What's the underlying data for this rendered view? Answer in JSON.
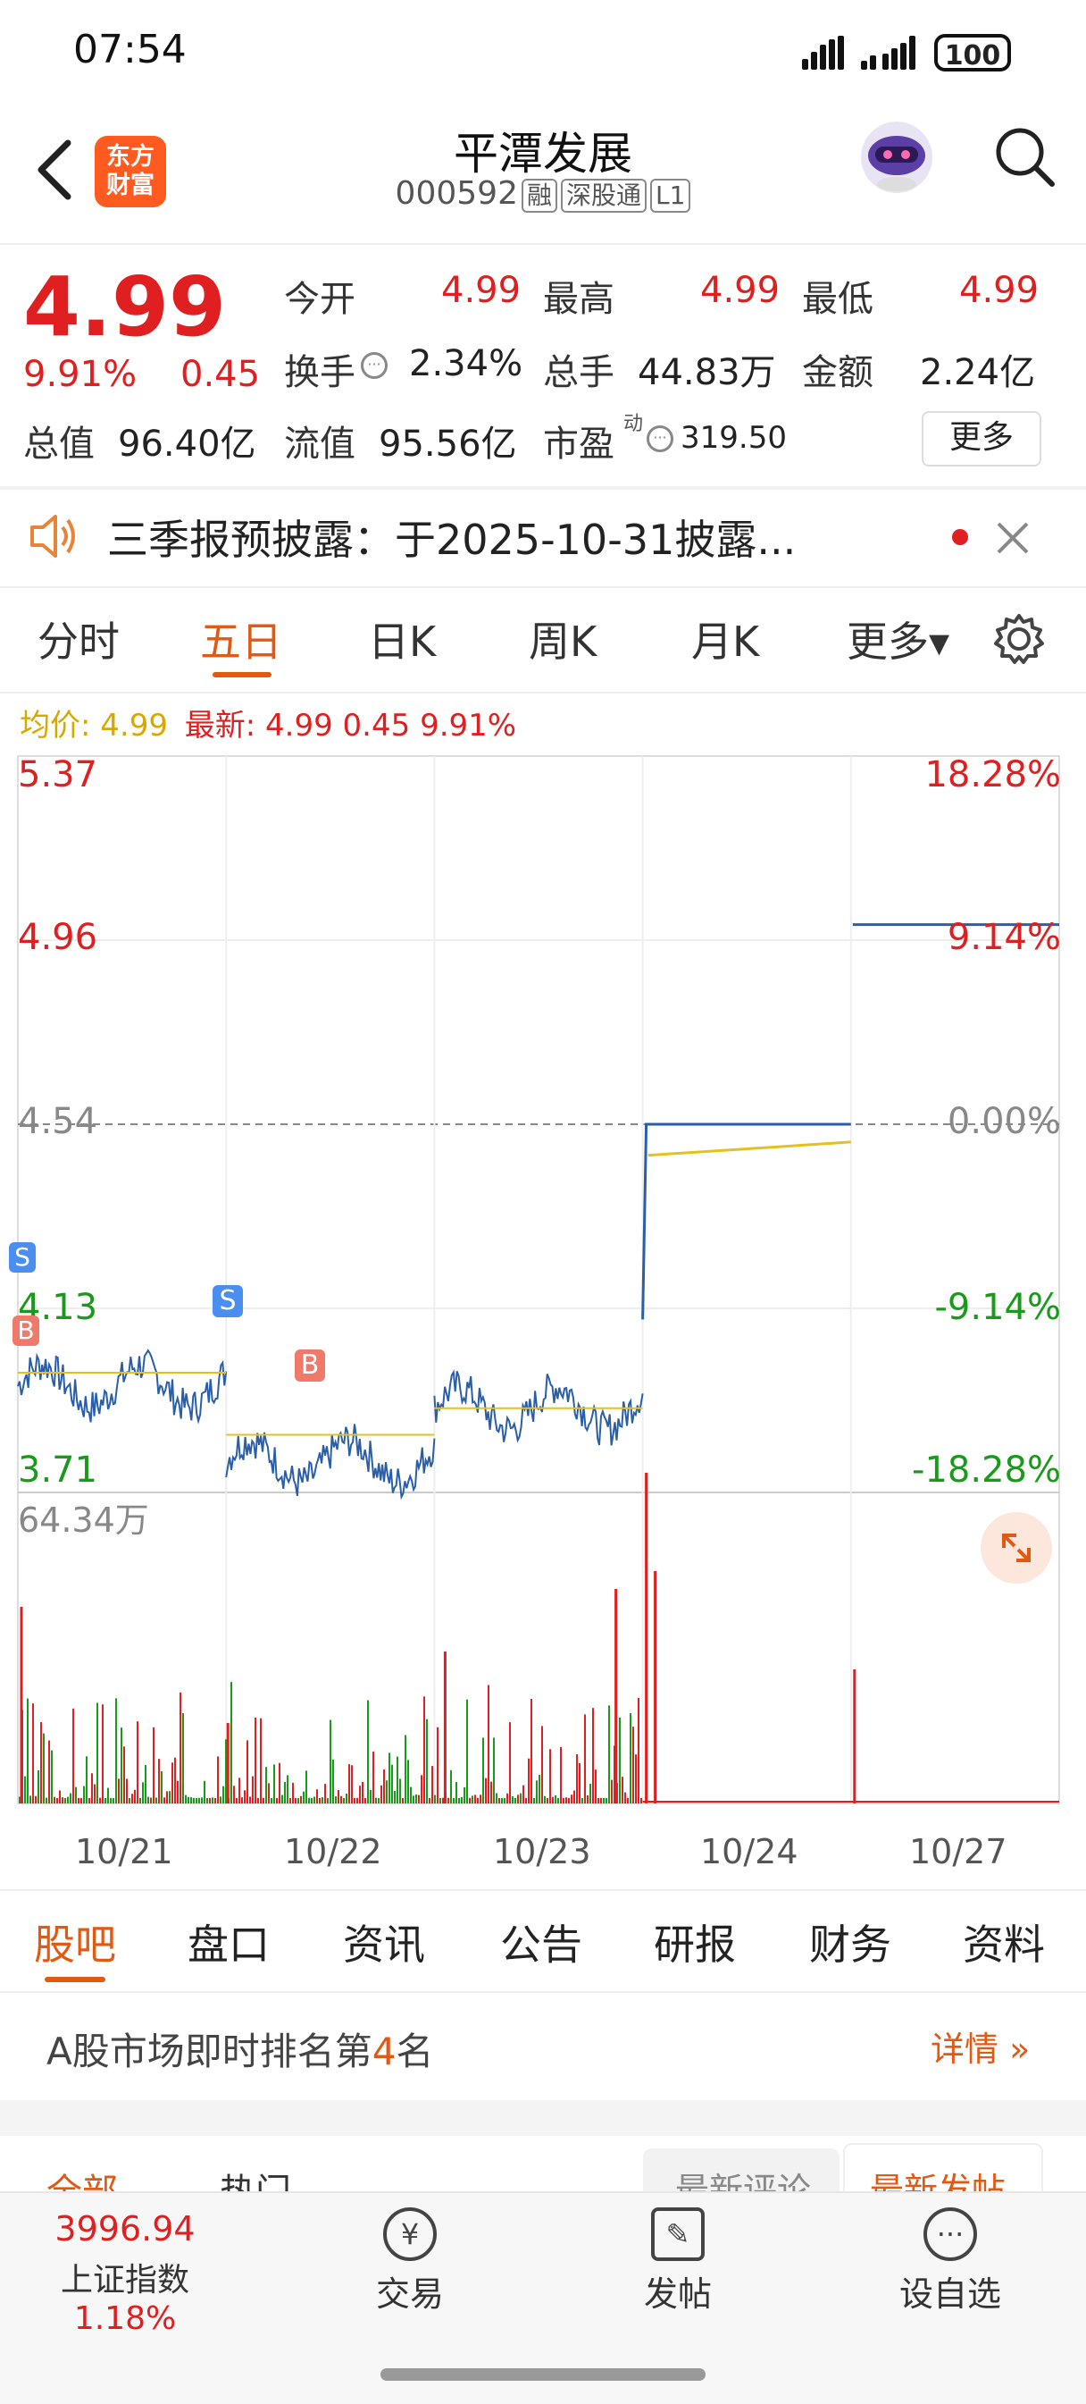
{
  "status_bar": {
    "time": "07:54",
    "battery": "100"
  },
  "header": {
    "title": "平潭发展",
    "code": "000592",
    "tags": [
      "融",
      "深股通",
      "L1"
    ],
    "logo_text": "东方\n财富"
  },
  "quote": {
    "price": "4.99",
    "change_pct": "9.91%",
    "change": "0.45",
    "stats": [
      {
        "label": "今开",
        "value": "4.99"
      },
      {
        "label": "最高",
        "value": "4.99"
      },
      {
        "label": "最低",
        "value": "4.99"
      },
      {
        "label": "换手",
        "value": "2.34%"
      },
      {
        "label": "总手",
        "value": "44.83万"
      },
      {
        "label": "金额",
        "value": "2.24亿"
      },
      {
        "label": "总值",
        "value": "96.40亿"
      },
      {
        "label": "流值",
        "value": "95.56亿"
      },
      {
        "label": "市盈",
        "value": "319.50"
      }
    ],
    "pe_superscript": "动",
    "more_label": "更多"
  },
  "notice": {
    "text": "三季报预披露：于2025-10-31披露..."
  },
  "chart_tabs": [
    "分时",
    "五日",
    "日K",
    "周K",
    "月K",
    "更多▾"
  ],
  "active_chart_tab": "五日",
  "chart": {
    "avg_label": "均价: 4.99",
    "latest_label": "最新: 4.99 0.45 9.91%",
    "left_axis": [
      "5.37",
      "4.96",
      "4.54",
      "4.13",
      "3.71"
    ],
    "right_axis": [
      "18.28%",
      "9.14%",
      "0.00%",
      "-9.14%",
      "-18.28%"
    ],
    "volume_max": "64.34万",
    "x_labels": [
      "10/21",
      "10/22",
      "10/23",
      "10/24",
      "10/27"
    ],
    "markers": [
      "S",
      "B",
      "S",
      "B"
    ]
  },
  "chart_data": {
    "type": "line",
    "title": "",
    "x": [
      "10/21",
      "10/22",
      "10/23",
      "10/24",
      "10/27"
    ],
    "ylim": [
      3.71,
      5.37
    ],
    "series": [
      {
        "values": [
          3.95,
          3.78,
          3.9,
          4.54,
          4.99
        ]
      },
      {
        "values": [
          3.98,
          3.84,
          3.9,
          4.5,
          4.99
        ]
      }
    ],
    "volume_max": "64.34万",
    "xlabel": "",
    "ylabel": ""
  },
  "bottom_tabs": [
    "股吧",
    "盘口",
    "资讯",
    "公告",
    "研报",
    "财务",
    "资料"
  ],
  "active_bottom_tab": "股吧",
  "rank": {
    "prefix": "A股市场即时排名第",
    "number": "4",
    "suffix": "名",
    "detail": "详情"
  },
  "forum_tabs": [
    "全部",
    "热门",
    "最新评论",
    "最新发帖"
  ],
  "nav": {
    "index_value": "3996.94",
    "index_name": "上证指数",
    "index_change": "1.18%",
    "items": [
      {
        "label": "交易",
        "icon": "¥"
      },
      {
        "label": "发帖",
        "icon": "✎"
      },
      {
        "label": "设自选",
        "icon": "···"
      }
    ]
  }
}
